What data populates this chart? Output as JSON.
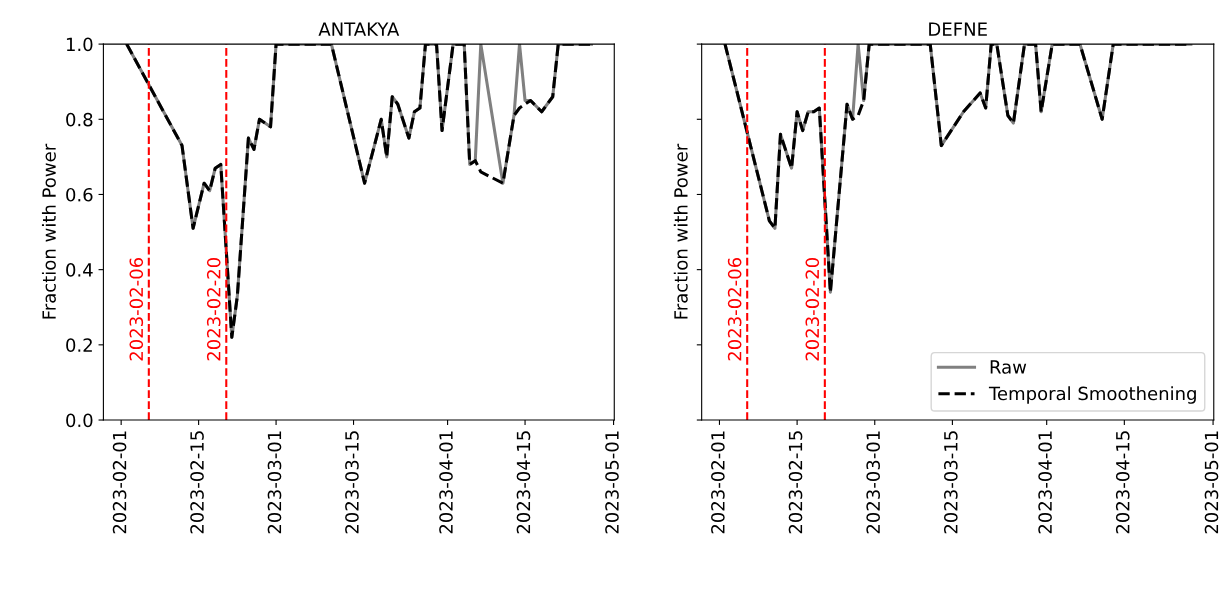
{
  "chart_data": [
    {
      "type": "line",
      "title": "ANTAKYA",
      "ylabel": "Fraction with Power",
      "x": [
        "2023-02-02",
        "2023-02-12",
        "2023-02-14",
        "2023-02-16",
        "2023-02-17",
        "2023-02-18",
        "2023-02-19",
        "2023-02-21",
        "2023-02-22",
        "2023-02-24",
        "2023-02-25",
        "2023-02-26",
        "2023-02-28",
        "2023-03-01",
        "2023-03-11",
        "2023-03-17",
        "2023-03-20",
        "2023-03-21",
        "2023-03-22",
        "2023-03-23",
        "2023-03-25",
        "2023-03-26",
        "2023-03-27",
        "2023-03-28",
        "2023-03-30",
        "2023-03-31",
        "2023-04-02",
        "2023-04-04",
        "2023-04-05",
        "2023-04-06",
        "2023-04-07",
        "2023-04-11",
        "2023-04-13",
        "2023-04-14",
        "2023-04-15",
        "2023-04-16",
        "2023-04-18",
        "2023-04-20",
        "2023-04-21",
        "2023-04-27"
      ],
      "series": [
        {
          "color": "#808080",
          "line_style": "solid",
          "values": [
            1.0,
            0.73,
            0.51,
            0.63,
            0.61,
            0.67,
            0.68,
            0.22,
            0.33,
            0.75,
            0.72,
            0.8,
            0.78,
            1.0,
            1.0,
            0.63,
            0.8,
            0.7,
            0.86,
            0.84,
            0.75,
            0.82,
            0.83,
            1.0,
            1.0,
            0.77,
            1.0,
            1.0,
            0.68,
            0.69,
            1.0,
            0.63,
            0.81,
            1.0,
            0.85,
            0.85,
            0.82,
            0.86,
            1.0,
            1.0
          ]
        },
        {
          "color": "#000000",
          "line_style": "dashed",
          "values": [
            1.0,
            0.73,
            0.51,
            0.63,
            0.61,
            0.67,
            0.68,
            0.22,
            0.33,
            0.75,
            0.72,
            0.8,
            0.78,
            1.0,
            1.0,
            0.63,
            0.8,
            0.7,
            0.86,
            0.84,
            0.75,
            0.82,
            0.83,
            1.0,
            1.0,
            0.77,
            1.0,
            1.0,
            0.68,
            0.69,
            0.66,
            0.63,
            0.81,
            0.83,
            0.84,
            0.85,
            0.82,
            0.86,
            1.0,
            1.0
          ]
        }
      ],
      "xlim": [
        "2023-01-28T19:00",
        "2023-05-01T03:00"
      ],
      "xticks": [
        "2023-02-01",
        "2023-02-15",
        "2023-03-01",
        "2023-03-15",
        "2023-04-01",
        "2023-04-15",
        "2023-05-01"
      ],
      "ylim": [
        0,
        1
      ],
      "yticks": [
        {
          "value": 0,
          "label": "0.0"
        },
        0.2,
        0.4,
        0.6,
        0.8,
        {
          "value": 1,
          "label": "1.0"
        }
      ],
      "ref_lines": [
        {
          "axis": "x",
          "value": "2023-02-06",
          "label": "2023-02-06",
          "color": "#ff0000",
          "line_style": "dashed"
        },
        {
          "axis": "x",
          "value": "2023-02-20",
          "label": "2023-02-20",
          "color": "#ff0000",
          "line_style": "dashed"
        }
      ],
      "grid": false,
      "legend": false
    },
    {
      "type": "line",
      "title": "DEFNE",
      "ylabel": "Fraction with Power",
      "x": [
        "2023-02-02",
        "2023-02-10",
        "2023-02-11",
        "2023-02-12",
        "2023-02-14",
        "2023-02-15",
        "2023-02-16",
        "2023-02-17",
        "2023-02-18",
        "2023-02-19",
        "2023-02-21",
        "2023-02-24",
        "2023-02-25",
        "2023-02-26",
        "2023-02-27",
        "2023-02-28",
        "2023-03-11",
        "2023-03-13",
        "2023-03-17",
        "2023-03-20",
        "2023-03-21",
        "2023-03-22",
        "2023-03-23",
        "2023-03-25",
        "2023-03-26",
        "2023-03-28",
        "2023-03-30",
        "2023-03-31",
        "2023-04-02",
        "2023-04-07",
        "2023-04-11",
        "2023-04-13",
        "2023-04-27"
      ],
      "series": [
        {
          "name": "Raw",
          "color": "#808080",
          "line_style": "solid",
          "values": [
            1.0,
            0.53,
            0.51,
            0.76,
            0.67,
            0.82,
            0.77,
            0.82,
            0.82,
            0.83,
            0.34,
            0.84,
            0.8,
            1.0,
            0.85,
            1.0,
            1.0,
            0.73,
            0.82,
            0.87,
            0.83,
            1.0,
            1.0,
            0.81,
            0.79,
            1.0,
            1.0,
            0.82,
            1.0,
            1.0,
            0.8,
            1.0,
            1.0
          ]
        },
        {
          "name": "Temporal Smoothening",
          "color": "#000000",
          "line_style": "dashed",
          "values": [
            1.0,
            0.53,
            0.51,
            0.76,
            0.67,
            0.82,
            0.77,
            0.82,
            0.82,
            0.83,
            0.34,
            0.84,
            0.8,
            0.81,
            0.85,
            1.0,
            1.0,
            0.73,
            0.82,
            0.87,
            0.83,
            1.0,
            1.0,
            0.81,
            0.79,
            1.0,
            1.0,
            0.82,
            1.0,
            1.0,
            0.8,
            1.0,
            1.0
          ]
        }
      ],
      "xlim": [
        "2023-01-28T19:00",
        "2023-05-01T03:00"
      ],
      "xticks": [
        "2023-02-01",
        "2023-02-15",
        "2023-03-01",
        "2023-03-15",
        "2023-04-01",
        "2023-04-15",
        "2023-05-01"
      ],
      "ylim": [
        0,
        1
      ],
      "yticks": [
        0,
        0.2,
        0.4,
        0.6,
        0.8,
        1
      ],
      "tick_labels": "x",
      "ref_lines": [
        {
          "axis": "x",
          "value": "2023-02-06",
          "label": "2023-02-06",
          "color": "#ff0000",
          "line_style": "dashed"
        },
        {
          "axis": "x",
          "value": "2023-02-20",
          "label": "2023-02-20",
          "color": "#ff0000",
          "line_style": "dashed"
        }
      ],
      "grid": false,
      "legend": "bottom right"
    }
  ]
}
